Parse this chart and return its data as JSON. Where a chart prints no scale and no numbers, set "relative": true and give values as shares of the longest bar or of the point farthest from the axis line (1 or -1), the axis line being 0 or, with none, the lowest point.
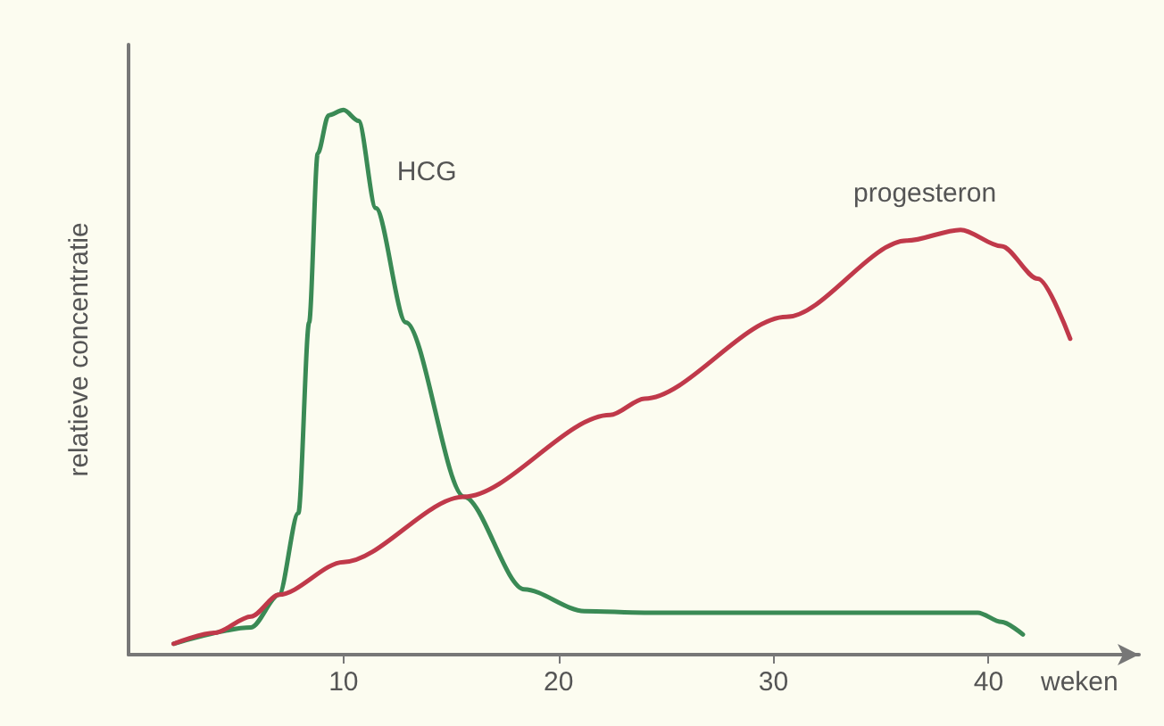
{
  "chart_data": {
    "type": "line",
    "relative": true,
    "xlabel": "weken",
    "ylabel": "relatieve concentratie",
    "xlim": [
      0,
      47
    ],
    "xticks": [
      10,
      20,
      30,
      40
    ],
    "grid": false,
    "legend": false,
    "marker": "none",
    "line_style": "solid",
    "series": [
      {
        "name": "HCG",
        "color": "#3a8a55",
        "x": [
          2.1,
          5.7,
          7.0,
          7.9,
          8.4,
          8.8,
          9.3,
          10.0,
          10.7,
          11.5,
          12.9,
          15.6,
          18.4,
          21.2,
          24.0,
          30.0,
          39.5,
          40.6,
          41.6
        ],
        "values": [
          0.02,
          0.05,
          0.11,
          0.26,
          0.61,
          0.92,
          0.99,
          1.0,
          0.98,
          0.82,
          0.61,
          0.29,
          0.12,
          0.08,
          0.077,
          0.077,
          0.077,
          0.06,
          0.037
        ]
      },
      {
        "name": "progesteron",
        "color": "#c0394a",
        "x": [
          2.1,
          4.0,
          5.7,
          7.0,
          10.0,
          15.6,
          22.4,
          24.0,
          30.6,
          36.2,
          38.7,
          40.6,
          42.3,
          43.8
        ],
        "values": [
          0.02,
          0.04,
          0.07,
          0.11,
          0.17,
          0.29,
          0.44,
          0.47,
          0.62,
          0.76,
          0.78,
          0.75,
          0.69,
          0.58
        ]
      }
    ]
  }
}
